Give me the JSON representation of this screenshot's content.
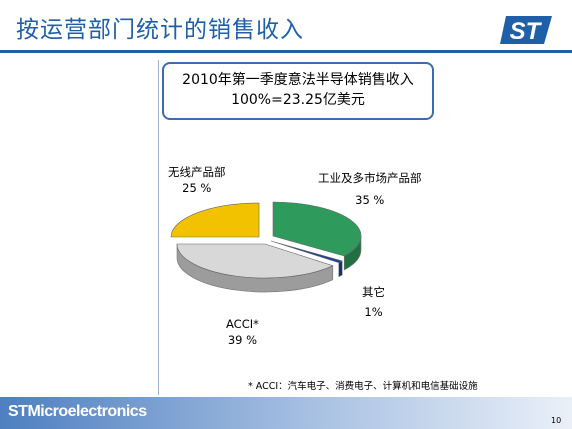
{
  "slide": {
    "title": "按运营部门统计的销售收入",
    "page_number": "10",
    "brand": "STMicroelectronics",
    "footnote": "* ACCI：汽车电子、消费电子、计算机和电信基础设施",
    "colors": {
      "title": "#1f5fa8",
      "rule": "#1f5fa8"
    }
  },
  "info_box": {
    "line1": "2010年第一季度意法半导体销售收入",
    "line2": "100%=23.25亿美元"
  },
  "chart_data": {
    "type": "pie",
    "title": "2010年第一季度意法半导体销售收入",
    "total_label": "100%=23.25亿美元",
    "slices": [
      {
        "name": "工业及多市场产品部",
        "value": 35,
        "value_label": "35 %",
        "color": "#2e9a5c"
      },
      {
        "name": "其它",
        "value": 1,
        "value_label": "1%",
        "color": "#1a3f9c"
      },
      {
        "name": "ACCI*",
        "value": 39,
        "value_label": "39 %",
        "color": "#d8d8d8"
      },
      {
        "name": "无线产品部",
        "value": 25,
        "value_label": "25 %",
        "color": "#f2c200"
      }
    ]
  }
}
